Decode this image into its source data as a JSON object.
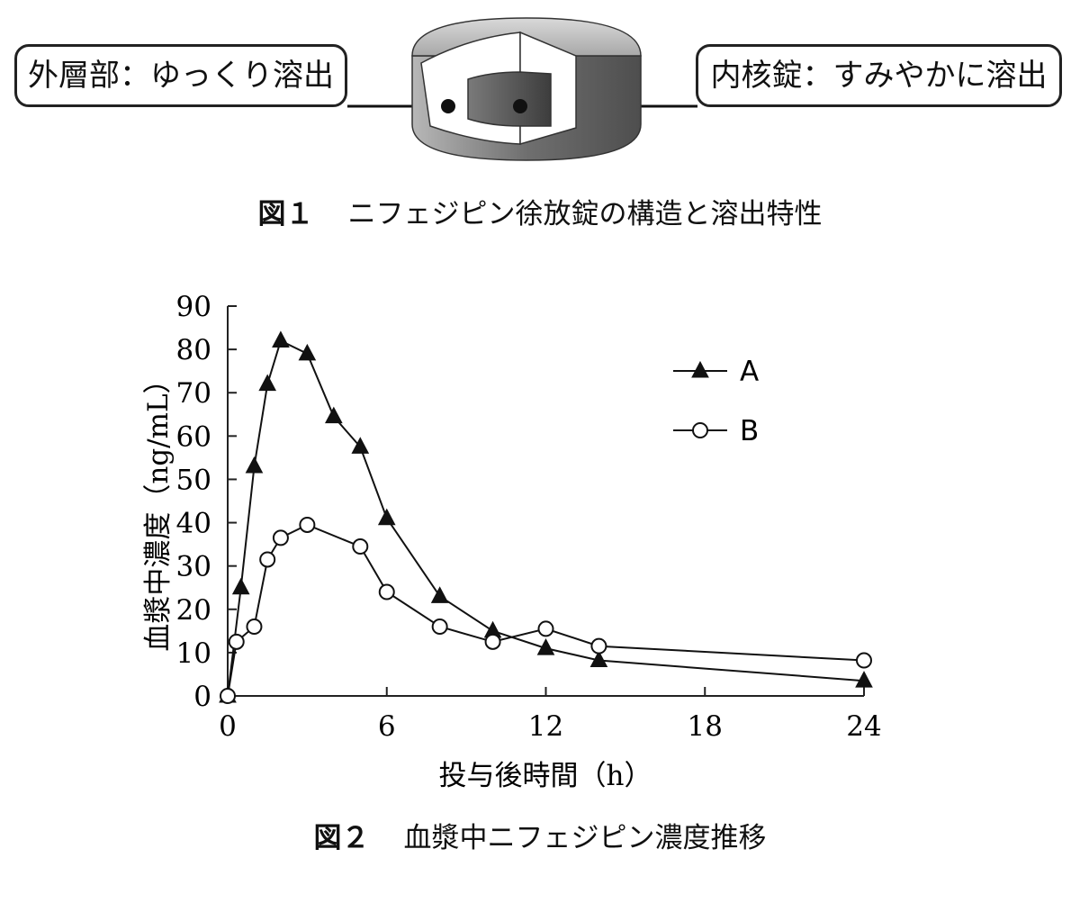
{
  "figure1": {
    "outer_label": "外層部：ゆっくり溶出",
    "inner_label": "内核錠：すみやかに溶出",
    "caption_number": "図１",
    "caption_text": "ニフェジピン徐放錠の構造と溶出特性"
  },
  "figure2": {
    "caption_number": "図２",
    "caption_text": "血漿中ニフェジピン濃度推移"
  },
  "chart_data": {
    "type": "line",
    "title": "",
    "xlabel": "投与後時間（h）",
    "ylabel": "血漿中濃度（ng/mL）",
    "xlim": [
      0,
      24
    ],
    "ylim": [
      0,
      90
    ],
    "xticks": [
      "0",
      "6",
      "12",
      "18",
      "24"
    ],
    "yticks": [
      "0",
      "10",
      "20",
      "30",
      "40",
      "50",
      "60",
      "70",
      "80",
      "90"
    ],
    "grid": false,
    "legend_position": "top-right",
    "series": [
      {
        "name": "A",
        "marker": "filled-triangle",
        "color": "#111111",
        "points": [
          [
            0,
            0
          ],
          [
            0.5,
            25
          ],
          [
            1,
            53
          ],
          [
            1.5,
            72
          ],
          [
            2,
            82
          ],
          [
            3,
            79
          ],
          [
            4,
            64.5
          ],
          [
            5,
            57.5
          ],
          [
            6,
            41
          ],
          [
            8,
            23
          ],
          [
            10,
            15
          ],
          [
            12,
            11
          ],
          [
            14,
            8.2
          ],
          [
            24,
            3.5
          ]
        ]
      },
      {
        "name": "B",
        "marker": "open-circle",
        "color": "#111111",
        "points": [
          [
            0,
            0
          ],
          [
            0.33,
            12.5
          ],
          [
            1,
            16
          ],
          [
            1.5,
            31.5
          ],
          [
            2,
            36.5
          ],
          [
            3,
            39.5
          ],
          [
            5,
            34.5
          ],
          [
            6,
            24
          ],
          [
            8,
            16
          ],
          [
            10,
            12.5
          ],
          [
            12,
            15.5
          ],
          [
            14,
            11.5
          ],
          [
            24,
            8.2
          ]
        ]
      }
    ]
  }
}
